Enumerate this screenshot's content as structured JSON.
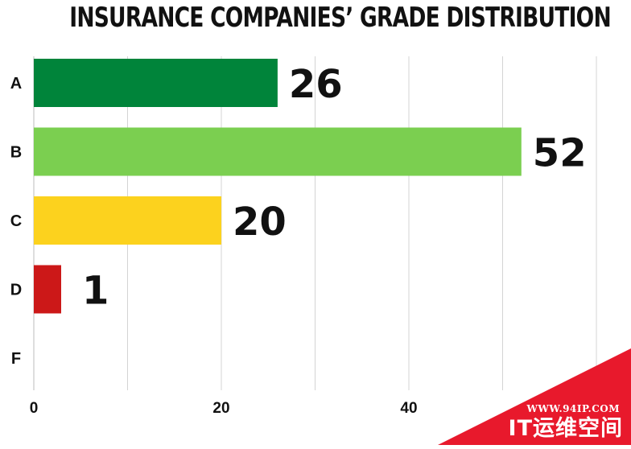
{
  "chart_data": {
    "type": "bar",
    "orientation": "horizontal",
    "title": "INSURANCE COMPANIES’ GRADE DISTRIBUTION",
    "categories": [
      "A",
      "B",
      "C",
      "D",
      "F"
    ],
    "values": [
      26,
      52,
      20,
      1,
      0
    ],
    "data_labels": [
      "26",
      "52",
      "20",
      "1",
      ""
    ],
    "colors": [
      "#00843a",
      "#7bcf50",
      "#fcd21e",
      "#cc1818",
      "#ffffff"
    ],
    "xticks": [
      0,
      20,
      40
    ],
    "xlim": [
      0,
      60
    ],
    "grid": "vertical",
    "legend": "none"
  },
  "watermark": {
    "url": "WWW.94IP.COM",
    "name": "IT运维空间",
    "color": "#e8192c"
  }
}
